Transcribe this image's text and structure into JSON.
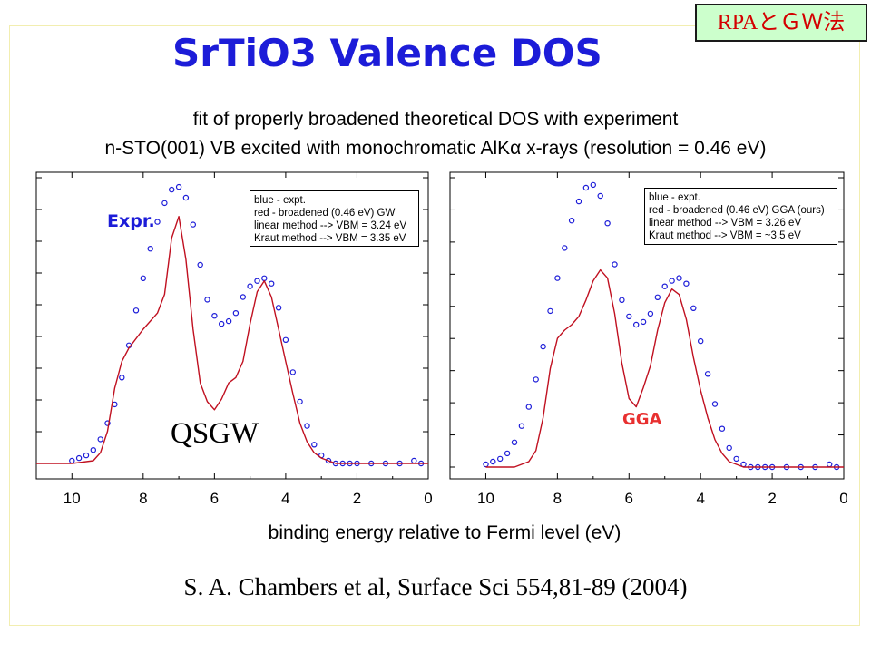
{
  "slide": {
    "tag": "RPAとＧＷ法",
    "title": "SrTiO3 Valence DOS",
    "subtitle_line1": "fit of properly broadened theoretical DOS with experiment",
    "subtitle_line2": "n-STO(001) VB excited with monochromatic AlKα x-rays (resolution = 0.46 eV)",
    "xlabel": "binding energy relative to Fermi level (eV)",
    "citation": "S. A. Chambers et al, Surface Sci 554,81-89 (2004)"
  },
  "colors": {
    "expt": "#1c1cd8",
    "theory": "#c01020",
    "title": "#1c1cd8",
    "gga_label": "#e83030",
    "tag_bg": "#ccffcc",
    "tag_text": "#d40000"
  },
  "chart_data": [
    {
      "type": "line",
      "x_reversed": true,
      "xlim": [
        11,
        0
      ],
      "x_ticks": [
        10,
        8,
        6,
        4,
        2,
        0
      ],
      "y_tick_count": 10,
      "legend": {
        "line1": "blue - expt.",
        "line2": "red - broadened (0.46 eV) GW",
        "line3": "linear method --> VBM = 3.24 eV",
        "line4": "Kraut method --> VBM = 3.35 eV"
      },
      "annotations": {
        "expr": "Expr.",
        "method": "QSGW"
      },
      "series": [
        {
          "role": "expt",
          "style": "markers",
          "x": [
            10.0,
            9.8,
            9.6,
            9.4,
            9.2,
            9.0,
            8.8,
            8.6,
            8.4,
            8.2,
            8.0,
            7.8,
            7.6,
            7.4,
            7.2,
            7.0,
            6.8,
            6.6,
            6.4,
            6.2,
            6.0,
            5.8,
            5.6,
            5.4,
            5.2,
            5.0,
            4.8,
            4.6,
            4.4,
            4.2,
            4.0,
            3.8,
            3.6,
            3.4,
            3.2,
            3.0,
            2.8,
            2.6,
            2.4,
            2.2,
            2.0,
            1.6,
            1.2,
            0.8,
            0.4,
            0.2
          ],
          "y": [
            0.01,
            0.02,
            0.03,
            0.05,
            0.09,
            0.15,
            0.22,
            0.32,
            0.44,
            0.57,
            0.69,
            0.8,
            0.9,
            0.97,
            1.02,
            1.03,
            0.99,
            0.89,
            0.74,
            0.61,
            0.55,
            0.52,
            0.53,
            0.56,
            0.62,
            0.66,
            0.68,
            0.69,
            0.67,
            0.58,
            0.46,
            0.34,
            0.23,
            0.14,
            0.07,
            0.03,
            0.01,
            0.0,
            0.0,
            0.0,
            0.0,
            0.0,
            0.0,
            0.0,
            0.01,
            0.0
          ]
        },
        {
          "role": "theory",
          "style": "line",
          "x": [
            11.2,
            10.0,
            9.4,
            9.2,
            9.0,
            8.8,
            8.6,
            8.4,
            8.0,
            7.6,
            7.4,
            7.2,
            7.0,
            6.8,
            6.6,
            6.4,
            6.2,
            6.0,
            5.8,
            5.6,
            5.4,
            5.2,
            5.0,
            4.8,
            4.6,
            4.4,
            4.2,
            4.0,
            3.8,
            3.6,
            3.4,
            3.2,
            3.0,
            2.8,
            2.6,
            2.2,
            1.0,
            0.0
          ],
          "y": [
            0.0,
            0.0,
            0.01,
            0.04,
            0.12,
            0.28,
            0.38,
            0.43,
            0.5,
            0.56,
            0.63,
            0.84,
            0.92,
            0.76,
            0.5,
            0.3,
            0.23,
            0.2,
            0.24,
            0.3,
            0.32,
            0.38,
            0.52,
            0.64,
            0.68,
            0.62,
            0.5,
            0.38,
            0.26,
            0.15,
            0.08,
            0.04,
            0.02,
            0.01,
            0.0,
            0.0,
            0.0,
            0.0
          ]
        }
      ]
    },
    {
      "type": "line",
      "x_reversed": true,
      "xlim": [
        11,
        0
      ],
      "x_ticks": [
        10,
        8,
        6,
        4,
        2,
        0
      ],
      "y_tick_count": 10,
      "legend": {
        "line1": "blue - expt.",
        "line2": "red - broadened (0.46 eV) GGA (ours)",
        "line3": "linear method --> VBM = 3.26 eV",
        "line4": "Kraut method --> VBM = ~3.5 eV"
      },
      "annotations": {
        "method": "GGA"
      },
      "series": [
        {
          "role": "expt",
          "style": "markers",
          "x": [
            10.0,
            9.8,
            9.6,
            9.4,
            9.2,
            9.0,
            8.8,
            8.6,
            8.4,
            8.2,
            8.0,
            7.8,
            7.6,
            7.4,
            7.2,
            7.0,
            6.8,
            6.6,
            6.4,
            6.2,
            6.0,
            5.8,
            5.6,
            5.4,
            5.2,
            5.0,
            4.8,
            4.6,
            4.4,
            4.2,
            4.0,
            3.8,
            3.6,
            3.4,
            3.2,
            3.0,
            2.8,
            2.6,
            2.4,
            2.2,
            2.0,
            1.6,
            1.2,
            0.8,
            0.4,
            0.2
          ],
          "y": [
            0.01,
            0.02,
            0.03,
            0.05,
            0.09,
            0.15,
            0.22,
            0.32,
            0.44,
            0.57,
            0.69,
            0.8,
            0.9,
            0.97,
            1.02,
            1.03,
            0.99,
            0.89,
            0.74,
            0.61,
            0.55,
            0.52,
            0.53,
            0.56,
            0.62,
            0.66,
            0.68,
            0.69,
            0.67,
            0.58,
            0.46,
            0.34,
            0.23,
            0.14,
            0.07,
            0.03,
            0.01,
            0.0,
            0.0,
            0.0,
            0.0,
            0.0,
            0.0,
            0.0,
            0.01,
            0.0
          ]
        },
        {
          "role": "theory",
          "style": "line",
          "x": [
            10.0,
            9.4,
            9.2,
            9.0,
            8.8,
            8.6,
            8.4,
            8.2,
            8.0,
            7.8,
            7.6,
            7.4,
            7.2,
            7.0,
            6.8,
            6.6,
            6.4,
            6.2,
            6.0,
            5.8,
            5.6,
            5.4,
            5.2,
            5.0,
            4.8,
            4.6,
            4.4,
            4.2,
            4.0,
            3.8,
            3.6,
            3.4,
            3.2,
            3.0,
            2.8,
            2.6,
            2.2,
            1.0,
            0.0
          ],
          "y": [
            0.0,
            0.0,
            0.0,
            0.01,
            0.02,
            0.06,
            0.18,
            0.36,
            0.47,
            0.5,
            0.52,
            0.55,
            0.61,
            0.68,
            0.72,
            0.69,
            0.56,
            0.38,
            0.25,
            0.22,
            0.29,
            0.37,
            0.5,
            0.6,
            0.65,
            0.63,
            0.54,
            0.4,
            0.28,
            0.18,
            0.1,
            0.05,
            0.02,
            0.01,
            0.0,
            0.0,
            0.0,
            0.0,
            0.0
          ]
        }
      ]
    }
  ]
}
